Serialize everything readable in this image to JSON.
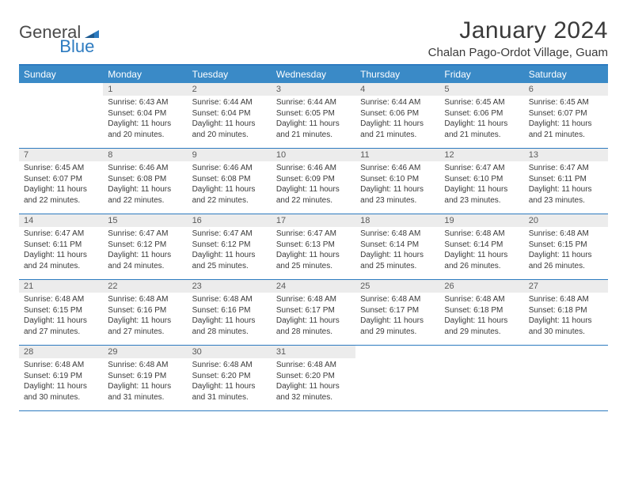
{
  "logo": {
    "text1": "General",
    "text2": "Blue"
  },
  "title": "January 2024",
  "location": "Chalan Pago-Ordot Village, Guam",
  "day_headers": [
    "Sunday",
    "Monday",
    "Tuesday",
    "Wednesday",
    "Thursday",
    "Friday",
    "Saturday"
  ],
  "colors": {
    "header_bar": "#3a8ac7",
    "rule": "#2d7bc0",
    "daynum_bg": "#ececec",
    "text": "#3a3a3a",
    "logo_blue": "#2d7bc0",
    "logo_gray": "#4a4a4a",
    "background": "#ffffff"
  },
  "typography": {
    "title_fontsize": 30,
    "location_fontsize": 15,
    "header_fontsize": 12,
    "daynum_fontsize": 11,
    "body_fontsize": 10
  },
  "layout": {
    "columns": 7,
    "rows": 5,
    "start_day_index": 1
  },
  "weeks": [
    [
      null,
      {
        "n": "1",
        "sr": "Sunrise: 6:43 AM",
        "ss": "Sunset: 6:04 PM",
        "dl": "Daylight: 11 hours and 20 minutes."
      },
      {
        "n": "2",
        "sr": "Sunrise: 6:44 AM",
        "ss": "Sunset: 6:04 PM",
        "dl": "Daylight: 11 hours and 20 minutes."
      },
      {
        "n": "3",
        "sr": "Sunrise: 6:44 AM",
        "ss": "Sunset: 6:05 PM",
        "dl": "Daylight: 11 hours and 21 minutes."
      },
      {
        "n": "4",
        "sr": "Sunrise: 6:44 AM",
        "ss": "Sunset: 6:06 PM",
        "dl": "Daylight: 11 hours and 21 minutes."
      },
      {
        "n": "5",
        "sr": "Sunrise: 6:45 AM",
        "ss": "Sunset: 6:06 PM",
        "dl": "Daylight: 11 hours and 21 minutes."
      },
      {
        "n": "6",
        "sr": "Sunrise: 6:45 AM",
        "ss": "Sunset: 6:07 PM",
        "dl": "Daylight: 11 hours and 21 minutes."
      }
    ],
    [
      {
        "n": "7",
        "sr": "Sunrise: 6:45 AM",
        "ss": "Sunset: 6:07 PM",
        "dl": "Daylight: 11 hours and 22 minutes."
      },
      {
        "n": "8",
        "sr": "Sunrise: 6:46 AM",
        "ss": "Sunset: 6:08 PM",
        "dl": "Daylight: 11 hours and 22 minutes."
      },
      {
        "n": "9",
        "sr": "Sunrise: 6:46 AM",
        "ss": "Sunset: 6:08 PM",
        "dl": "Daylight: 11 hours and 22 minutes."
      },
      {
        "n": "10",
        "sr": "Sunrise: 6:46 AM",
        "ss": "Sunset: 6:09 PM",
        "dl": "Daylight: 11 hours and 22 minutes."
      },
      {
        "n": "11",
        "sr": "Sunrise: 6:46 AM",
        "ss": "Sunset: 6:10 PM",
        "dl": "Daylight: 11 hours and 23 minutes."
      },
      {
        "n": "12",
        "sr": "Sunrise: 6:47 AM",
        "ss": "Sunset: 6:10 PM",
        "dl": "Daylight: 11 hours and 23 minutes."
      },
      {
        "n": "13",
        "sr": "Sunrise: 6:47 AM",
        "ss": "Sunset: 6:11 PM",
        "dl": "Daylight: 11 hours and 23 minutes."
      }
    ],
    [
      {
        "n": "14",
        "sr": "Sunrise: 6:47 AM",
        "ss": "Sunset: 6:11 PM",
        "dl": "Daylight: 11 hours and 24 minutes."
      },
      {
        "n": "15",
        "sr": "Sunrise: 6:47 AM",
        "ss": "Sunset: 6:12 PM",
        "dl": "Daylight: 11 hours and 24 minutes."
      },
      {
        "n": "16",
        "sr": "Sunrise: 6:47 AM",
        "ss": "Sunset: 6:12 PM",
        "dl": "Daylight: 11 hours and 25 minutes."
      },
      {
        "n": "17",
        "sr": "Sunrise: 6:47 AM",
        "ss": "Sunset: 6:13 PM",
        "dl": "Daylight: 11 hours and 25 minutes."
      },
      {
        "n": "18",
        "sr": "Sunrise: 6:48 AM",
        "ss": "Sunset: 6:14 PM",
        "dl": "Daylight: 11 hours and 25 minutes."
      },
      {
        "n": "19",
        "sr": "Sunrise: 6:48 AM",
        "ss": "Sunset: 6:14 PM",
        "dl": "Daylight: 11 hours and 26 minutes."
      },
      {
        "n": "20",
        "sr": "Sunrise: 6:48 AM",
        "ss": "Sunset: 6:15 PM",
        "dl": "Daylight: 11 hours and 26 minutes."
      }
    ],
    [
      {
        "n": "21",
        "sr": "Sunrise: 6:48 AM",
        "ss": "Sunset: 6:15 PM",
        "dl": "Daylight: 11 hours and 27 minutes."
      },
      {
        "n": "22",
        "sr": "Sunrise: 6:48 AM",
        "ss": "Sunset: 6:16 PM",
        "dl": "Daylight: 11 hours and 27 minutes."
      },
      {
        "n": "23",
        "sr": "Sunrise: 6:48 AM",
        "ss": "Sunset: 6:16 PM",
        "dl": "Daylight: 11 hours and 28 minutes."
      },
      {
        "n": "24",
        "sr": "Sunrise: 6:48 AM",
        "ss": "Sunset: 6:17 PM",
        "dl": "Daylight: 11 hours and 28 minutes."
      },
      {
        "n": "25",
        "sr": "Sunrise: 6:48 AM",
        "ss": "Sunset: 6:17 PM",
        "dl": "Daylight: 11 hours and 29 minutes."
      },
      {
        "n": "26",
        "sr": "Sunrise: 6:48 AM",
        "ss": "Sunset: 6:18 PM",
        "dl": "Daylight: 11 hours and 29 minutes."
      },
      {
        "n": "27",
        "sr": "Sunrise: 6:48 AM",
        "ss": "Sunset: 6:18 PM",
        "dl": "Daylight: 11 hours and 30 minutes."
      }
    ],
    [
      {
        "n": "28",
        "sr": "Sunrise: 6:48 AM",
        "ss": "Sunset: 6:19 PM",
        "dl": "Daylight: 11 hours and 30 minutes."
      },
      {
        "n": "29",
        "sr": "Sunrise: 6:48 AM",
        "ss": "Sunset: 6:19 PM",
        "dl": "Daylight: 11 hours and 31 minutes."
      },
      {
        "n": "30",
        "sr": "Sunrise: 6:48 AM",
        "ss": "Sunset: 6:20 PM",
        "dl": "Daylight: 11 hours and 31 minutes."
      },
      {
        "n": "31",
        "sr": "Sunrise: 6:48 AM",
        "ss": "Sunset: 6:20 PM",
        "dl": "Daylight: 11 hours and 32 minutes."
      },
      null,
      null,
      null
    ]
  ]
}
